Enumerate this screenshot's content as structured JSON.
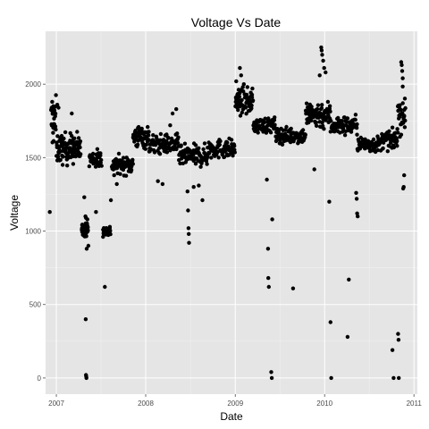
{
  "chart_data": {
    "type": "scatter",
    "title": "Voltage Vs Date",
    "xlabel": "Date",
    "ylabel": "Voltage",
    "x_ticks": [
      "2007",
      "2008",
      "2009",
      "2010",
      "2011"
    ],
    "y_ticks": [
      "0",
      "500",
      "1000",
      "1500",
      "2000"
    ],
    "xlim": [
      "2006-11-18",
      "2011-01-15"
    ],
    "ylim": [
      -110,
      2360
    ],
    "grid": true,
    "point_color": "#000000",
    "panel_color": "#e5e5e5",
    "segments": [
      {
        "start": "2006-12-10",
        "end": "2006-12-31",
        "center": 1740,
        "spread": 280,
        "n": 24
      },
      {
        "start": "2007-01-01",
        "end": "2007-04-10",
        "center": 1560,
        "spread": 170,
        "n": 110
      },
      {
        "start": "2007-04-15",
        "end": "2007-05-10",
        "center": 1010,
        "spread": 70,
        "n": 55
      },
      {
        "start": "2007-05-15",
        "end": "2007-07-05",
        "center": 1490,
        "spread": 110,
        "n": 40
      },
      {
        "start": "2007-07-10",
        "end": "2007-08-10",
        "center": 1000,
        "spread": 60,
        "n": 35
      },
      {
        "start": "2007-08-15",
        "end": "2007-11-10",
        "center": 1450,
        "spread": 100,
        "n": 75
      },
      {
        "start": "2007-11-10",
        "end": "2008-01-15",
        "center": 1640,
        "spread": 130,
        "n": 60
      },
      {
        "start": "2008-01-15",
        "end": "2008-05-15",
        "center": 1590,
        "spread": 110,
        "n": 95
      },
      {
        "start": "2008-05-15",
        "end": "2008-09-10",
        "center": 1510,
        "spread": 120,
        "n": 95
      },
      {
        "start": "2008-09-10",
        "end": "2008-12-31",
        "center": 1560,
        "spread": 110,
        "n": 80
      },
      {
        "start": "2009-01-01",
        "end": "2009-03-15",
        "center": 1880,
        "spread": 140,
        "n": 65
      },
      {
        "start": "2009-03-15",
        "end": "2009-06-15",
        "center": 1720,
        "spread": 90,
        "n": 70
      },
      {
        "start": "2009-06-15",
        "end": "2009-10-15",
        "center": 1650,
        "spread": 90,
        "n": 95
      },
      {
        "start": "2009-10-15",
        "end": "2010-01-25",
        "center": 1790,
        "spread": 160,
        "n": 85
      },
      {
        "start": "2010-01-25",
        "end": "2010-05-15",
        "center": 1720,
        "spread": 110,
        "n": 75
      },
      {
        "start": "2010-05-15",
        "end": "2010-08-20",
        "center": 1590,
        "spread": 90,
        "n": 70
      },
      {
        "start": "2010-08-20",
        "end": "2010-10-25",
        "center": 1620,
        "spread": 100,
        "n": 55
      },
      {
        "start": "2010-10-25",
        "end": "2010-11-28",
        "center": 1800,
        "spread": 230,
        "n": 32
      }
    ],
    "points": [
      [
        "2006-12-05",
        1130
      ],
      [
        "2006-12-15",
        1880
      ],
      [
        "2006-12-20",
        1850
      ],
      [
        "2007-01-05",
        1860
      ],
      [
        "2007-01-10",
        1840
      ],
      [
        "2007-03-05",
        1800
      ],
      [
        "2007-04-25",
        1230
      ],
      [
        "2007-04-30",
        1100
      ],
      [
        "2007-05-02",
        1090
      ],
      [
        "2007-05-05",
        880
      ],
      [
        "2007-05-08",
        1080
      ],
      [
        "2007-05-12",
        900
      ],
      [
        "2007-05-01",
        400
      ],
      [
        "2007-05-02",
        20
      ],
      [
        "2007-05-03",
        10
      ],
      [
        "2007-05-04",
        0
      ],
      [
        "2007-06-12",
        1130
      ],
      [
        "2007-07-18",
        620
      ],
      [
        "2007-08-12",
        1210
      ],
      [
        "2007-08-25",
        1380
      ],
      [
        "2007-09-05",
        1320
      ],
      [
        "2008-02-20",
        1340
      ],
      [
        "2008-03-10",
        1320
      ],
      [
        "2008-04-20",
        1800
      ],
      [
        "2008-05-05",
        1830
      ],
      [
        "2008-04-10",
        1720
      ],
      [
        "2008-06-20",
        1270
      ],
      [
        "2008-06-22",
        1140
      ],
      [
        "2008-06-24",
        1020
      ],
      [
        "2008-06-25",
        980
      ],
      [
        "2008-06-26",
        920
      ],
      [
        "2008-07-15",
        1300
      ],
      [
        "2008-08-05",
        1310
      ],
      [
        "2008-08-20",
        1210
      ],
      [
        "2009-01-05",
        2020
      ],
      [
        "2009-01-20",
        2110
      ],
      [
        "2009-01-25",
        2060
      ],
      [
        "2009-02-05",
        2000
      ],
      [
        "2009-05-10",
        1350
      ],
      [
        "2009-05-15",
        880
      ],
      [
        "2009-05-16",
        680
      ],
      [
        "2009-05-18",
        620
      ],
      [
        "2009-06-01",
        1080
      ],
      [
        "2009-05-28",
        40
      ],
      [
        "2009-05-30",
        0
      ],
      [
        "2009-08-25",
        610
      ],
      [
        "2009-11-20",
        1420
      ],
      [
        "2009-12-18",
        2250
      ],
      [
        "2009-12-20",
        2230
      ],
      [
        "2009-12-22",
        2200
      ],
      [
        "2009-12-26",
        2160
      ],
      [
        "2009-12-30",
        2110
      ],
      [
        "2010-01-05",
        2080
      ],
      [
        "2009-12-12",
        2060
      ],
      [
        "2010-01-20",
        1200
      ],
      [
        "2010-01-25",
        380
      ],
      [
        "2010-01-28",
        0
      ],
      [
        "2010-04-10",
        670
      ],
      [
        "2010-04-05",
        280
      ],
      [
        "2010-05-10",
        1260
      ],
      [
        "2010-05-12",
        1220
      ],
      [
        "2010-05-14",
        1120
      ],
      [
        "2010-05-16",
        1100
      ],
      [
        "2010-10-05",
        190
      ],
      [
        "2010-10-10",
        0
      ],
      [
        "2010-10-28",
        300
      ],
      [
        "2010-10-30",
        260
      ],
      [
        "2010-10-31",
        0
      ],
      [
        "2010-11-10",
        2150
      ],
      [
        "2010-11-12",
        2130
      ],
      [
        "2010-11-14",
        2090
      ],
      [
        "2010-11-16",
        2040
      ],
      [
        "2010-11-18",
        1290
      ],
      [
        "2010-11-20",
        1300
      ],
      [
        "2010-11-22",
        1380
      ]
    ]
  }
}
